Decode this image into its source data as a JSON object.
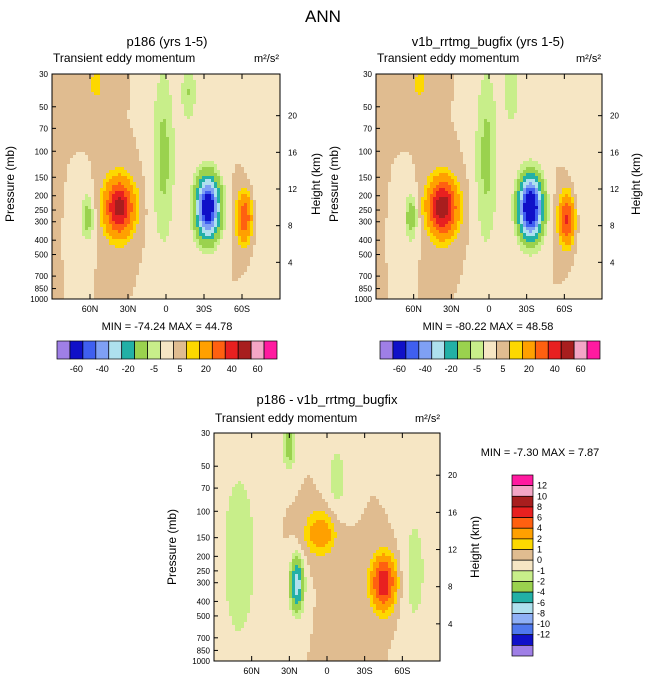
{
  "page": {
    "title": "ANN"
  },
  "colorbar_main": {
    "colors": [
      "#9f7fe6",
      "#1010c8",
      "#3f5ff0",
      "#7fa0f4",
      "#aee0ee",
      "#22b0a6",
      "#9ad24e",
      "#c8ee8a",
      "#f6e6c4",
      "#e0bc90",
      "#fdd800",
      "#ffa000",
      "#ff6010",
      "#e82020",
      "#a81e1e",
      "#f4a6c6",
      "#ff1aa0"
    ],
    "labels": [
      "-60",
      "-40",
      "-20",
      "-5",
      "5",
      "20",
      "40",
      "60"
    ]
  },
  "colorbar_diff": {
    "colors": [
      "#9f7fe6",
      "#1010c8",
      "#4f78ee",
      "#8fb0f6",
      "#aee0ee",
      "#22b0a6",
      "#9ad24e",
      "#c8ee8a",
      "#f6e6c4",
      "#e0bc90",
      "#fdd800",
      "#ffa000",
      "#ff6010",
      "#e82020",
      "#a81e1e",
      "#f4a6c6",
      "#ff1aa0"
    ],
    "labels": [
      "12",
      "10",
      "8",
      "6",
      "4",
      "2",
      "1",
      "0",
      "-1",
      "-2",
      "-4",
      "-6",
      "-8",
      "-10",
      "-12"
    ]
  },
  "chart_data": [
    {
      "type": "heatmap",
      "id": "p1",
      "title": "p186 (yrs 1-5)",
      "subtitle_left": "Transient eddy momentum",
      "units": "m²/s²",
      "ylabel": "Pressure (mb)",
      "ylabel_right": "Height (km)",
      "xticks": [
        "60N",
        "30N",
        "0",
        "30S",
        "60S"
      ],
      "xtick_values": [
        60,
        30,
        0,
        -30,
        -60
      ],
      "xlim": [
        90,
        -90
      ],
      "yticks": [
        "30",
        "50",
        "70",
        "100",
        "150",
        "200",
        "250",
        "300",
        "400",
        "500",
        "700",
        "850",
        "1000"
      ],
      "ytick_values": [
        30,
        50,
        70,
        100,
        150,
        200,
        250,
        300,
        400,
        500,
        700,
        850,
        1000
      ],
      "ylim": [
        30,
        1000
      ],
      "height_ticks": [
        "20",
        "16",
        "12",
        "8",
        "4"
      ],
      "height_values": [
        20,
        16,
        12,
        8,
        4
      ],
      "min_max": "MIN = -74.24  MAX =  44.78",
      "features": [
        {
          "lat": 37,
          "p": 240,
          "amp": 44.8,
          "wlat": 11,
          "wp": 0.42
        },
        {
          "lat": -33,
          "p": 240,
          "amp": -74.2,
          "wlat": 9,
          "wp": 0.45
        },
        {
          "lat": -62,
          "p": 280,
          "amp": 28,
          "wlat": 6,
          "wp": 0.38
        },
        {
          "lat": 62,
          "p": 280,
          "amp": -14,
          "wlat": 5,
          "wp": 0.35
        },
        {
          "lat": 2,
          "p": 110,
          "amp": -12,
          "wlat": 9,
          "wp": 1.4
        },
        {
          "lat": -74,
          "p": 150,
          "amp": -4,
          "wlat": 9,
          "wp": 1.2
        },
        {
          "lat": 55,
          "p": 35,
          "amp": 6,
          "wlat": 9,
          "wp": 0.4
        },
        {
          "lat": -18,
          "p": 40,
          "amp": -10,
          "wlat": 6,
          "wp": 0.5
        }
      ]
    },
    {
      "type": "heatmap",
      "id": "p2",
      "title": "v1b_rrtmg_bugfix (yrs 1-5)",
      "subtitle_left": "Transient eddy momentum",
      "units": "m²/s²",
      "ylabel": "Pressure (mb)",
      "ylabel_right": "Height (km)",
      "xticks": [
        "60N",
        "30N",
        "0",
        "30S",
        "60S"
      ],
      "xtick_values": [
        60,
        30,
        0,
        -30,
        -60
      ],
      "xlim": [
        90,
        -90
      ],
      "yticks": [
        "30",
        "50",
        "70",
        "100",
        "150",
        "200",
        "250",
        "300",
        "400",
        "500",
        "700",
        "850",
        "1000"
      ],
      "ytick_values": [
        30,
        50,
        70,
        100,
        150,
        200,
        250,
        300,
        400,
        500,
        700,
        850,
        1000
      ],
      "ylim": [
        30,
        1000
      ],
      "height_ticks": [
        "20",
        "16",
        "12",
        "8",
        "4"
      ],
      "height_values": [
        20,
        16,
        12,
        8,
        4
      ],
      "min_max": "MIN = -80.22  MAX =  48.58",
      "features": [
        {
          "lat": 37,
          "p": 240,
          "amp": 48.6,
          "wlat": 11,
          "wp": 0.42
        },
        {
          "lat": -33,
          "p": 240,
          "amp": -80.2,
          "wlat": 9,
          "wp": 0.45
        },
        {
          "lat": -62,
          "p": 290,
          "amp": 32,
          "wlat": 6,
          "wp": 0.38
        },
        {
          "lat": 62,
          "p": 280,
          "amp": -15,
          "wlat": 5,
          "wp": 0.35
        },
        {
          "lat": 2,
          "p": 110,
          "amp": -12,
          "wlat": 9,
          "wp": 1.4
        },
        {
          "lat": -74,
          "p": 150,
          "amp": -4,
          "wlat": 9,
          "wp": 1.2
        },
        {
          "lat": 55,
          "p": 35,
          "amp": 6,
          "wlat": 9,
          "wp": 0.4
        },
        {
          "lat": -18,
          "p": 40,
          "amp": -10,
          "wlat": 6,
          "wp": 0.5
        }
      ]
    },
    {
      "type": "heatmap",
      "id": "p3",
      "title": "p186 - v1b_rrtmg_bugfix",
      "subtitle_left": "Transient eddy momentum",
      "units": "m²/s²",
      "ylabel": "Pressure (mb)",
      "ylabel_right": "Height (km)",
      "xticks": [
        "60N",
        "30N",
        "0",
        "30S",
        "60S"
      ],
      "xtick_values": [
        60,
        30,
        0,
        -30,
        -60
      ],
      "xlim": [
        90,
        -90
      ],
      "yticks": [
        "30",
        "50",
        "70",
        "100",
        "150",
        "200",
        "250",
        "300",
        "400",
        "500",
        "700",
        "850",
        "1000"
      ],
      "ytick_values": [
        30,
        50,
        70,
        100,
        150,
        200,
        250,
        300,
        400,
        500,
        700,
        850,
        1000
      ],
      "ylim": [
        30,
        1000
      ],
      "height_ticks": [
        "20",
        "16",
        "12",
        "8",
        "4"
      ],
      "height_values": [
        20,
        16,
        12,
        8,
        4
      ],
      "min_max": "MIN = -7.30  MAX =   7.87",
      "features": [
        {
          "lat": 5,
          "p": 140,
          "amp": 3.2,
          "wlat": 12,
          "wp": 0.32
        },
        {
          "lat": -45,
          "p": 300,
          "amp": 7.9,
          "wlat": 9,
          "wp": 0.38
        },
        {
          "lat": 24,
          "p": 310,
          "amp": -7.3,
          "wlat": 5,
          "wp": 0.38
        },
        {
          "lat": -8,
          "p": 60,
          "amp": -1.5,
          "wlat": 8,
          "wp": 0.6
        },
        {
          "lat": 70,
          "p": 200,
          "amp": -1.8,
          "wlat": 15,
          "wp": 1.5
        },
        {
          "lat": -70,
          "p": 250,
          "amp": -1.5,
          "wlat": 10,
          "wp": 1.0
        },
        {
          "lat": 30,
          "p": 35,
          "amp": -3,
          "wlat": 5,
          "wp": 0.4
        },
        {
          "lat": -20,
          "p": 600,
          "amp": 0.8,
          "wlat": 12,
          "wp": 0.6
        }
      ]
    }
  ]
}
